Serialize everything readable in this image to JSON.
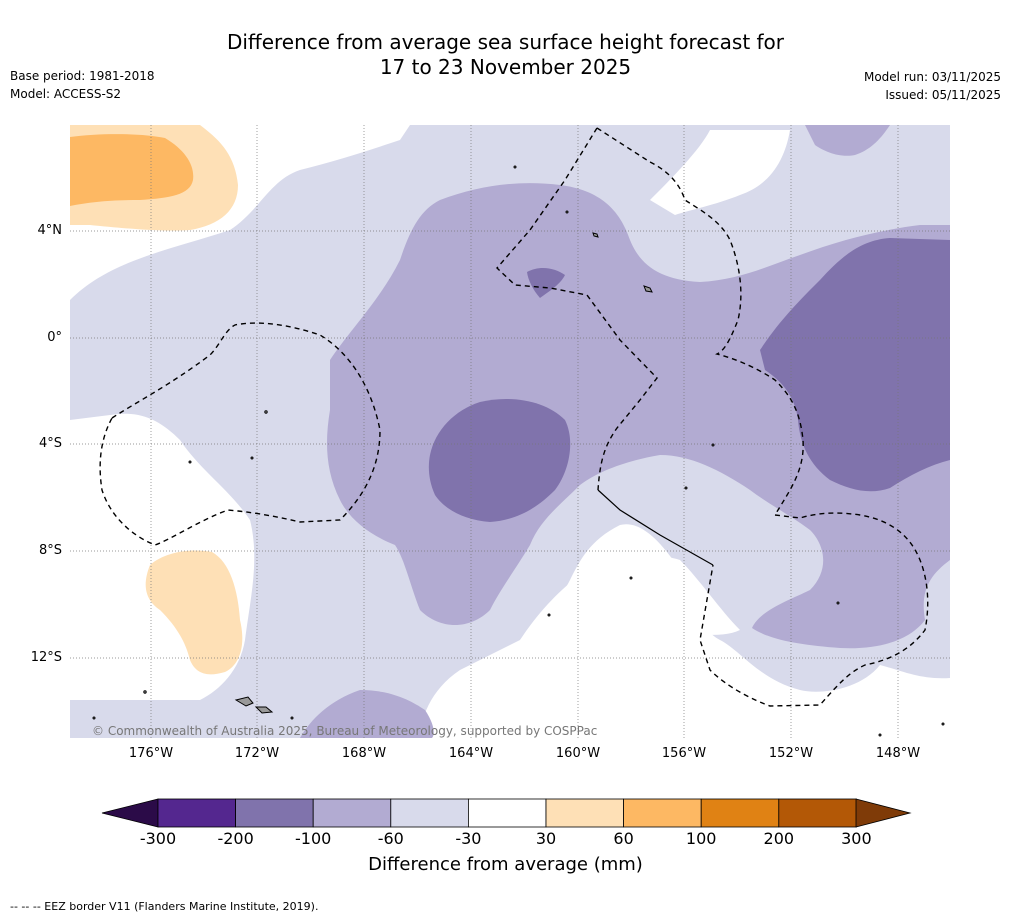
{
  "title": {
    "line1": "Difference from average sea surface height forecast for",
    "line2": "17 to 23 November 2025"
  },
  "meta_left": {
    "base_period": "Base period: 1981-2018",
    "model": "Model: ACCESS-S2"
  },
  "meta_right": {
    "model_run": "Model run: 03/11/2025",
    "issued": "Issued: 05/11/2025"
  },
  "map": {
    "lat_labels": [
      "4°N",
      "0°",
      "4°S",
      "8°S",
      "12°S"
    ],
    "lon_labels": [
      "176°W",
      "172°W",
      "168°W",
      "164°W",
      "160°W",
      "156°W",
      "152°W",
      "148°W"
    ],
    "copyright": "© Commonwealth of Australia 2025, Bureau of Meteorology, supported by COSPPac"
  },
  "colorbar": {
    "title": "Difference from average (mm)",
    "ticks": [
      "-300",
      "-200",
      "-100",
      "-60",
      "-30",
      "30",
      "60",
      "100",
      "200",
      "300"
    ],
    "colors": {
      "under": "#2b0b48",
      "n300_200": "#54278f",
      "n200_100": "#8073ac",
      "n100_60": "#b2abd2",
      "n60_30": "#d8daeb",
      "n30_30": "#ffffff",
      "p30_60": "#fee0b6",
      "p60_100": "#fdb863",
      "p100_200": "#e08214",
      "p200_300": "#b35806",
      "over": "#7f3b08"
    }
  },
  "footnote": "-- -- -- EEZ border V11 (Flanders Marine Institute, 2019)."
}
